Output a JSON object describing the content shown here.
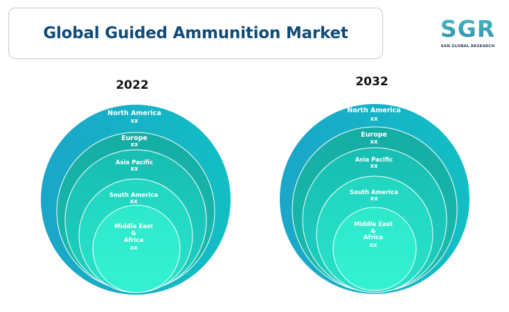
{
  "title": "Global Guided Ammunition Market",
  "logo": {
    "text": "SGR",
    "subtext": "SAN GLOBAL RESEARCH"
  },
  "colors": {
    "title": "#0f4c7a",
    "logo": "#3aa7bd",
    "outer": "#16b3c6",
    "mid": "#14ab9f",
    "inner": "#2ef0cc"
  },
  "charts": [
    {
      "year": "2022",
      "segments": [
        {
          "label": "North America",
          "value": "xx"
        },
        {
          "label": "Europe",
          "value": "xx"
        },
        {
          "label": "Asia Pacific",
          "value": "xx"
        },
        {
          "label": "South America",
          "value": "xx"
        },
        {
          "label_lines": [
            "Middle East",
            "&",
            "Africa"
          ],
          "value": "xx"
        }
      ]
    },
    {
      "year": "2032",
      "segments": [
        {
          "label": "North America",
          "value": "xx"
        },
        {
          "label": "Europe",
          "value": "xx"
        },
        {
          "label": "Asia Pacific",
          "value": "xx"
        },
        {
          "label": "South America",
          "value": "xx"
        },
        {
          "label_lines": [
            "Middle East",
            "&",
            "Africa"
          ],
          "value": "xx"
        }
      ]
    }
  ]
}
